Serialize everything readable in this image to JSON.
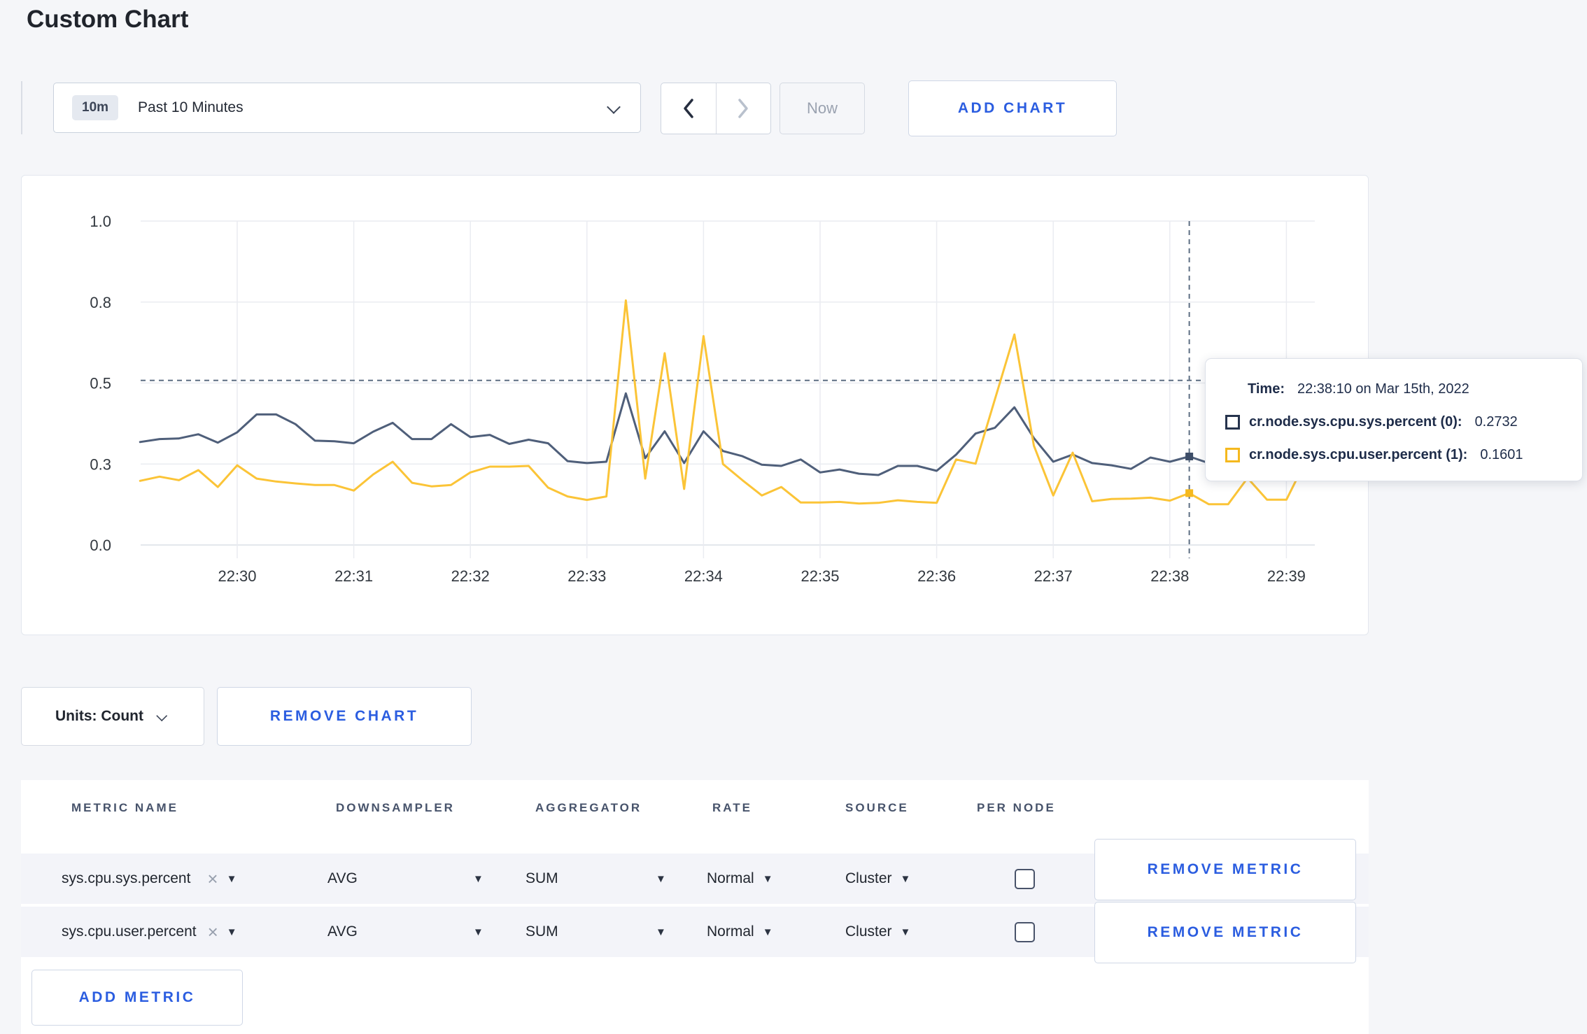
{
  "page": {
    "title": "Custom Chart"
  },
  "toolbar": {
    "time_range": {
      "badge": "10m",
      "label": "Past 10 Minutes"
    },
    "now_label": "Now",
    "add_chart_label": "ADD CHART"
  },
  "colors": {
    "accent_blue": "#2b5de0",
    "series_sys": "#4f5f7a",
    "series_user": "#fbc437",
    "page_bg": "#f5f6f9"
  },
  "chart_data": {
    "type": "line",
    "title": "",
    "xlabel": "",
    "ylabel": "",
    "ylim": [
      0,
      1
    ],
    "grid": true,
    "x_start": "22:29:10",
    "x_interval_sec": 10,
    "x_tick_labels": [
      "22:30",
      "22:31",
      "22:32",
      "22:33",
      "22:34",
      "22:35",
      "22:36",
      "22:37",
      "22:38",
      "22:39"
    ],
    "y_tick_labels": [
      "0.0",
      "0.3",
      "0.5",
      "0.8",
      "1.0"
    ],
    "y_tick_values": [
      0,
      0.25,
      0.5,
      0.75,
      1.0
    ],
    "hover": {
      "index": 54,
      "time": "22:38:10",
      "guide_value": 0.508
    },
    "series": [
      {
        "name": "cr.node.sys.cpu.sys.percent",
        "color": "#4f5f7a",
        "swatch_color": "#26334d",
        "marker_color": "#3d4d68",
        "values": [
          0.318,
          0.327,
          0.329,
          0.342,
          0.316,
          0.348,
          0.403,
          0.403,
          0.373,
          0.322,
          0.32,
          0.314,
          0.35,
          0.377,
          0.327,
          0.327,
          0.373,
          0.333,
          0.34,
          0.312,
          0.325,
          0.314,
          0.259,
          0.253,
          0.257,
          0.468,
          0.268,
          0.351,
          0.253,
          0.351,
          0.29,
          0.274,
          0.248,
          0.244,
          0.264,
          0.224,
          0.233,
          0.22,
          0.216,
          0.244,
          0.244,
          0.229,
          0.279,
          0.344,
          0.362,
          0.425,
          0.33,
          0.257,
          0.279,
          0.253,
          0.246,
          0.235,
          0.27,
          0.257,
          0.2732,
          0.253,
          0.28,
          0.295,
          0.305,
          0.295,
          0.3
        ]
      },
      {
        "name": "cr.node.sys.cpu.user.percent",
        "color": "#fbc437",
        "swatch_color": "#f5b91e",
        "marker_color": "#f5b91e",
        "values": [
          0.198,
          0.211,
          0.2,
          0.231,
          0.179,
          0.246,
          0.205,
          0.196,
          0.19,
          0.185,
          0.185,
          0.168,
          0.218,
          0.257,
          0.192,
          0.181,
          0.185,
          0.224,
          0.242,
          0.242,
          0.244,
          0.177,
          0.15,
          0.139,
          0.15,
          0.755,
          0.205,
          0.592,
          0.173,
          0.645,
          0.25,
          0.2,
          0.153,
          0.179,
          0.131,
          0.131,
          0.133,
          0.128,
          0.13,
          0.138,
          0.133,
          0.13,
          0.264,
          0.251,
          0.45,
          0.65,
          0.307,
          0.153,
          0.285,
          0.135,
          0.142,
          0.143,
          0.146,
          0.137,
          0.1601,
          0.126,
          0.126,
          0.207,
          0.14,
          0.14,
          0.26
        ]
      }
    ]
  },
  "tooltip": {
    "time_label": "Time:",
    "time_value": "22:38:10 on Mar 15th, 2022",
    "entries": [
      {
        "label": "cr.node.sys.cpu.sys.percent (0):",
        "value": "0.2732"
      },
      {
        "label": "cr.node.sys.cpu.user.percent (1):",
        "value": "0.1601"
      }
    ]
  },
  "controls": {
    "units_label": "Units: Count",
    "remove_chart_label": "REMOVE CHART",
    "add_metric_label": "ADD METRIC"
  },
  "table": {
    "headers": [
      "METRIC NAME",
      "DOWNSAMPLER",
      "AGGREGATOR",
      "RATE",
      "SOURCE",
      "PER NODE"
    ],
    "remove_metric_label": "REMOVE METRIC",
    "rows": [
      {
        "metric": "sys.cpu.sys.percent",
        "downsampler": "AVG",
        "aggregator": "SUM",
        "rate": "Normal",
        "source": "Cluster",
        "per_node_checked": false
      },
      {
        "metric": "sys.cpu.user.percent",
        "downsampler": "AVG",
        "aggregator": "SUM",
        "rate": "Normal",
        "source": "Cluster",
        "per_node_checked": false
      }
    ]
  }
}
